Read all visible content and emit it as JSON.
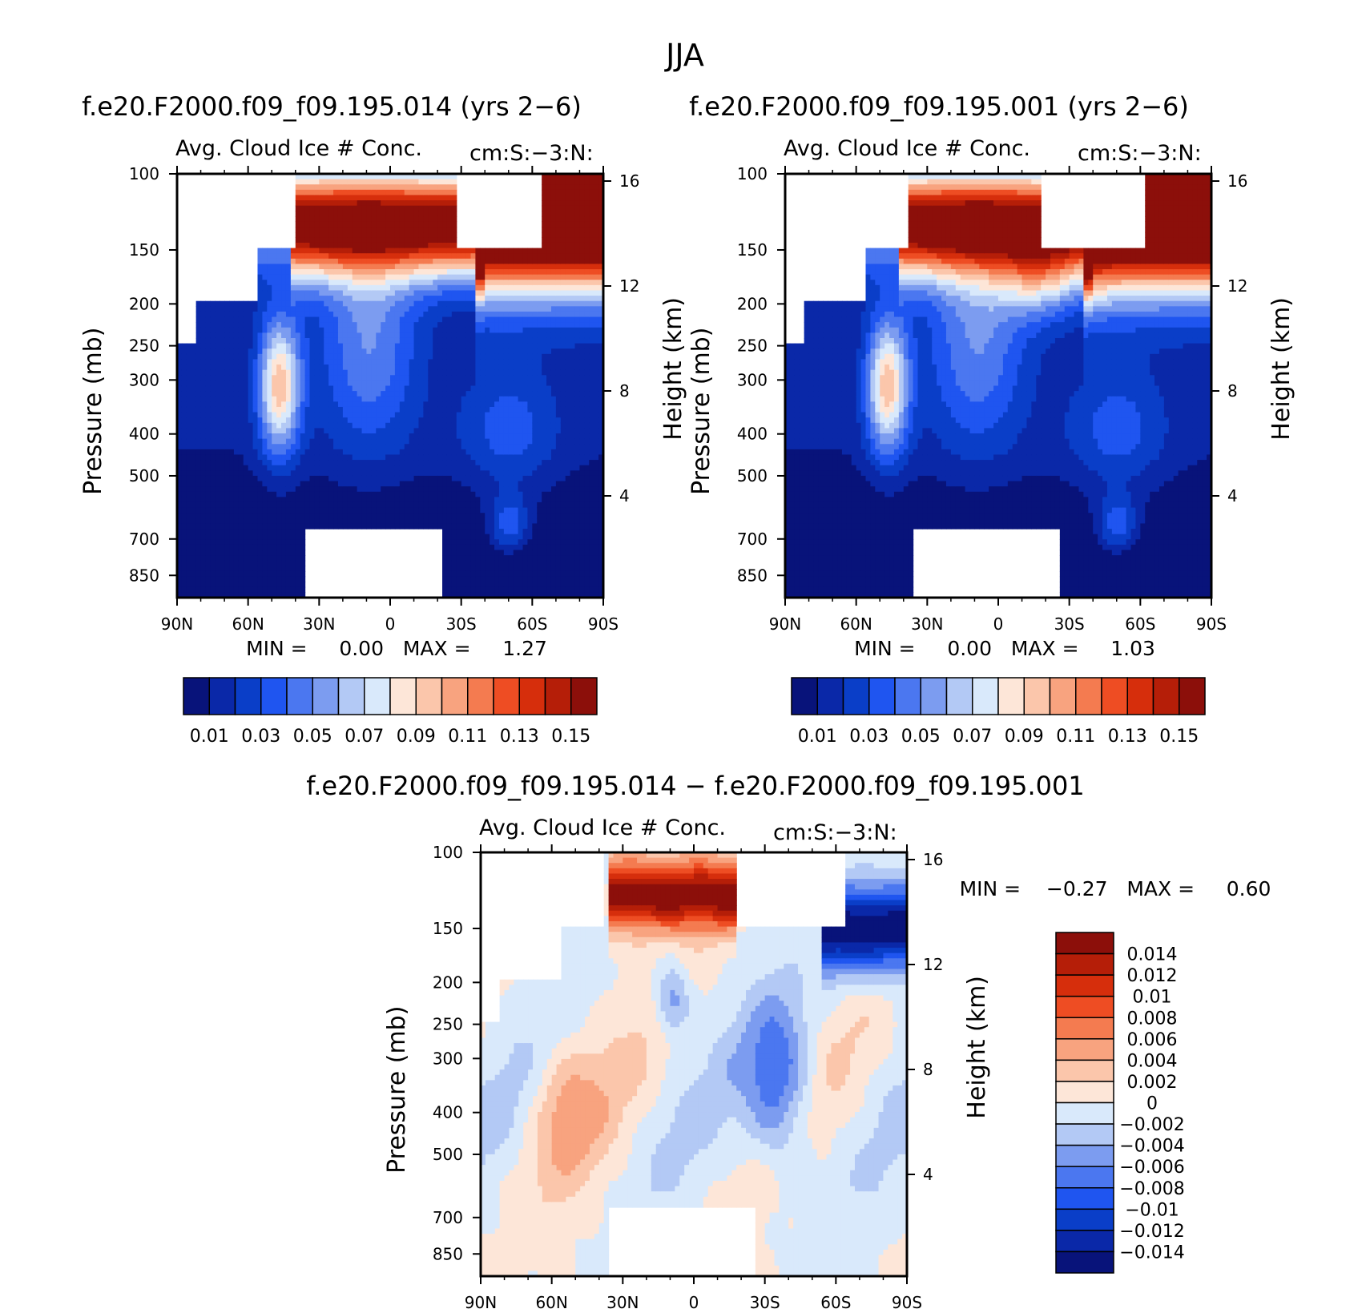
{
  "page": {
    "title": "JJA"
  },
  "colors": {
    "abs_palette": [
      "#08137a",
      "#0a28a8",
      "#0a3ec8",
      "#1f55f0",
      "#4b77f0",
      "#7c9cf0",
      "#b3c9f5",
      "#d9e9fb",
      "#fde6d8",
      "#fbc6ab",
      "#f8a37f",
      "#f47b50",
      "#ee4d23",
      "#d62e0c",
      "#b51e08",
      "#8c0f0a"
    ],
    "diff_palette": [
      "#08137a",
      "#0a28a8",
      "#0a3ec8",
      "#1f55f0",
      "#4b77f0",
      "#7c9cf0",
      "#b3c9f5",
      "#d9e9fb",
      "#fde6d8",
      "#fbc6ab",
      "#f8a37f",
      "#f47b50",
      "#ee4d23",
      "#d62e0c",
      "#b51e08",
      "#8c0f0a"
    ]
  },
  "panels": [
    {
      "id": "p1",
      "title": "f.e20.F2000.f09_f09.195.014 (yrs 2-6)",
      "left_label": "Avg. Cloud Ice # Conc.",
      "right_label": "cm:S:-3:N:",
      "minmax": "MIN =     0.00   MAX =     1.27",
      "mode": "abs",
      "seed": 1
    },
    {
      "id": "p2",
      "title": "f.e20.F2000.f09_f09.195.001 (yrs 2-6)",
      "left_label": "Avg. Cloud Ice # Conc.",
      "right_label": "cm:S:-3:N:",
      "minmax": "MIN =     0.00   MAX =     1.03",
      "mode": "abs",
      "seed": 2
    },
    {
      "id": "p3",
      "title": "f.e20.F2000.f09_f09.195.014 - f.e20.F2000.f09_f09.195.001",
      "left_label": "Avg. Cloud Ice # Conc.",
      "right_label": "cm:S:-3:N:",
      "minmax": "MIN =    -0.27   MAX =     0.60",
      "mode": "diff",
      "seed": 3
    }
  ],
  "axes": {
    "ylabel": "Pressure (mb)",
    "ylabel2": "Height (km)",
    "x_ticks": [
      "90N",
      "60N",
      "30N",
      "0",
      "30S",
      "60S",
      "90S"
    ],
    "y_ticks": [
      "100",
      "150",
      "200",
      "250",
      "300",
      "400",
      "500",
      "700",
      "850"
    ],
    "y2_ticks": [
      "16",
      "12",
      "8",
      "4"
    ]
  },
  "colorbars": {
    "abs_labels": [
      "0.01",
      "0.03",
      "0.05",
      "0.07",
      "0.09",
      "0.11",
      "0.13",
      "0.15"
    ],
    "diff_labels": [
      "0.014",
      "0.012",
      "0.01",
      "0.008",
      "0.006",
      "0.004",
      "0.002",
      "0",
      "-0.002",
      "-0.004",
      "-0.006",
      "-0.008",
      "-0.01",
      "-0.012",
      "-0.014"
    ]
  },
  "chart_data": [
    {
      "type": "heatmap",
      "title": "f.e20.F2000.f09_f09.195.014 (yrs 2-6)",
      "ylabel": "Pressure (mb)",
      "ylabel2": "Height (km)",
      "xlim": [
        "90N",
        "90S"
      ],
      "ylim": [
        1000,
        100
      ],
      "levels": [
        0.01,
        0.02,
        0.03,
        0.04,
        0.05,
        0.06,
        0.07,
        0.08,
        0.09,
        0.1,
        0.11,
        0.12,
        0.13,
        0.14,
        0.15
      ],
      "min": 0.0,
      "max": 1.27
    },
    {
      "type": "heatmap",
      "title": "f.e20.F2000.f09_f09.195.001 (yrs 2-6)",
      "ylabel": "Pressure (mb)",
      "ylabel2": "Height (km)",
      "xlim": [
        "90N",
        "90S"
      ],
      "ylim": [
        1000,
        100
      ],
      "levels": [
        0.01,
        0.02,
        0.03,
        0.04,
        0.05,
        0.06,
        0.07,
        0.08,
        0.09,
        0.1,
        0.11,
        0.12,
        0.13,
        0.14,
        0.15
      ],
      "min": 0.0,
      "max": 1.03
    },
    {
      "type": "heatmap",
      "title": "f.e20.F2000.f09_f09.195.014 - f.e20.F2000.f09_f09.195.001",
      "ylabel": "Pressure (mb)",
      "ylabel2": "Height (km)",
      "xlim": [
        "90N",
        "90S"
      ],
      "ylim": [
        1000,
        100
      ],
      "levels": [
        -0.014,
        -0.012,
        -0.01,
        -0.008,
        -0.006,
        -0.004,
        -0.002,
        0,
        0.002,
        0.004,
        0.006,
        0.008,
        0.01,
        0.012,
        0.014
      ],
      "min": -0.27,
      "max": 0.6
    }
  ]
}
